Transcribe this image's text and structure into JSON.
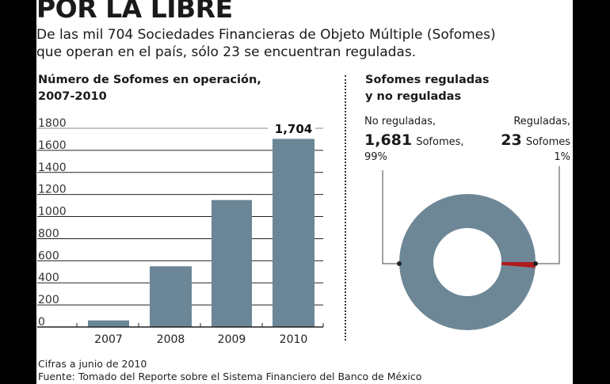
{
  "title": "POR LA LIBRE",
  "subtitle_lines": [
    "De las mil 704 Sociedades Financieras de Objeto Múltiple (Sofomes)",
    "que operan en el país, sólo 23 se encuentran reguladas."
  ],
  "footer": [
    "Cifras a junio de 2010",
    "Fuente: Tomado del Reporte sobre el Sistema Financiero del Banco de México"
  ],
  "chart_data": [
    {
      "type": "bar",
      "title_lines": [
        "Número de Sofomes en operación,",
        "2007-2010"
      ],
      "categories": [
        "2007",
        "2008",
        "2009",
        "2010"
      ],
      "values": [
        60,
        550,
        1150,
        1704
      ],
      "data_labels": {
        "2010": "1,704"
      },
      "ylim": [
        0,
        1800
      ],
      "yticks": [
        "0",
        "200",
        "400",
        "600",
        "800",
        "1000",
        "1200",
        "1400",
        "1600",
        "1800"
      ],
      "grid": true,
      "bar_color": "#6b8696"
    },
    {
      "type": "pie",
      "style": "donut",
      "title_lines": [
        "Sofomes reguladas",
        "y no reguladas"
      ],
      "slices": [
        {
          "label": "No reguladas,",
          "count": "1,681",
          "unit": "Sofomes,",
          "percent": "99%",
          "value": 1681,
          "color": "#6e8796"
        },
        {
          "label": "Reguladas,",
          "count": "23",
          "unit": "Sofomes",
          "percent": "1%",
          "value": 23,
          "color": "#b01c1c"
        }
      ]
    }
  ]
}
